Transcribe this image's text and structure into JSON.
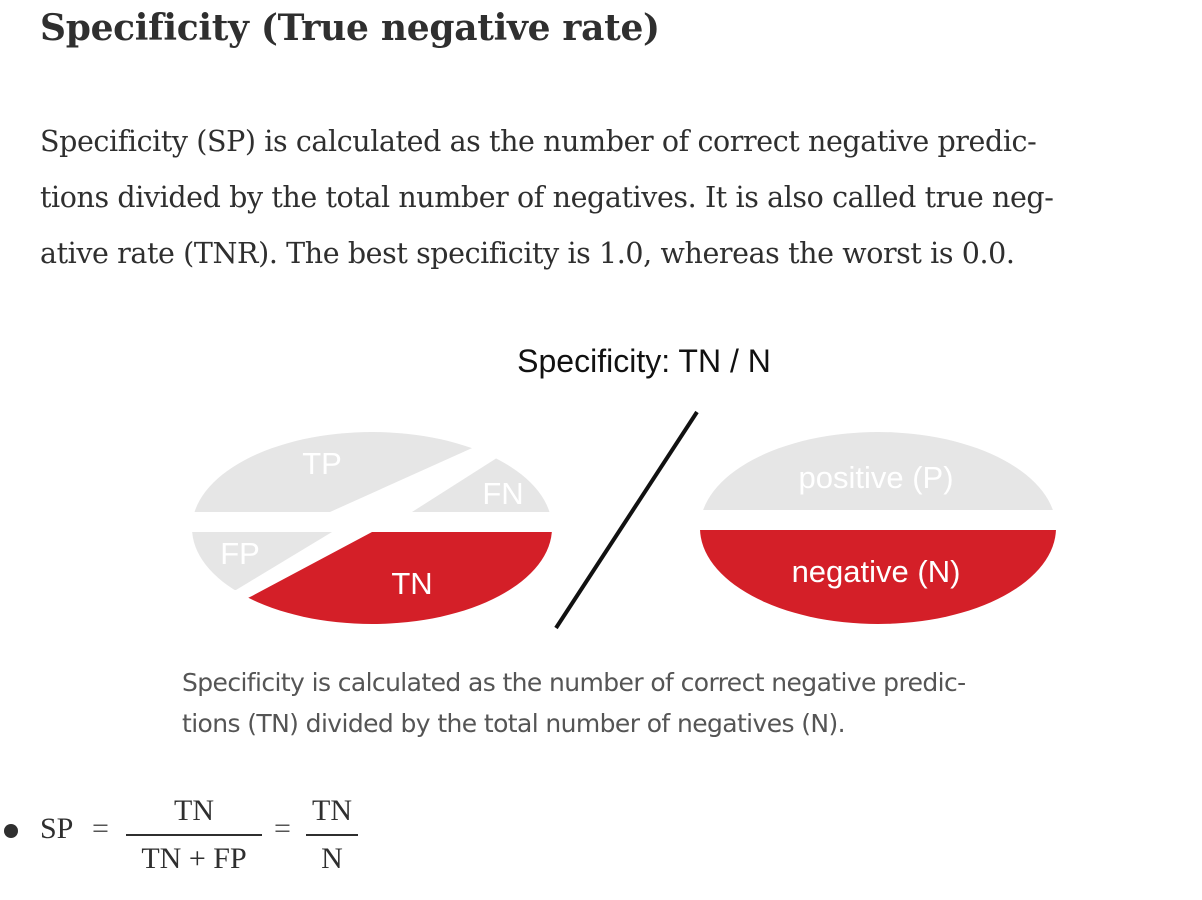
{
  "heading": "Specificity (True negative rate)",
  "paragraph": {
    "lines": [
      "Specificity (SP) is calculated as the number of correct negative predic-",
      "tions divided by the total number of negatives. It is also called true neg-",
      "ative rate (TNR). The best specificity is 1.0, whereas the worst is 0.0."
    ]
  },
  "figure": {
    "title": "Specificity: TN / N",
    "left_labels": {
      "tp": "TP",
      "fn": "FN",
      "fp": "FP",
      "tn": "TN"
    },
    "right_labels": {
      "positive": "positive (P)",
      "negative": "negative (N)"
    },
    "colors": {
      "highlight": "#d41f28",
      "muted": "#e6e6e6",
      "muted_text": "#ffffff",
      "line": "#111111"
    }
  },
  "caption": {
    "lines": [
      "Specificity is calculated as the number of correct negative predic-",
      "tions (TN) divided by the total number of negatives (N)."
    ]
  },
  "formula": {
    "lhs": "SP",
    "equals": "=",
    "frac1": {
      "num": "TN",
      "den": "TN + FP"
    },
    "frac2": {
      "num": "TN",
      "den": "N"
    }
  }
}
